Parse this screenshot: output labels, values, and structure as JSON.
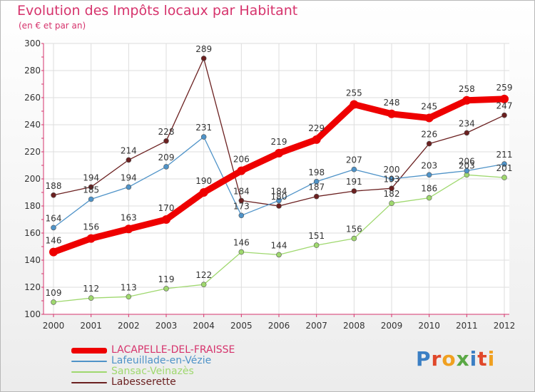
{
  "title": "Evolution des Impôts locaux par Habitant",
  "subtitle": "(en € et par an)",
  "logo_text": "Proxiti",
  "colors": {
    "title": "#d6336c",
    "grid": "#dddddd",
    "axis": "#d6336c"
  },
  "chart_data": {
    "type": "line",
    "x": [
      "2000",
      "2001",
      "2002",
      "2003",
      "2004",
      "2005",
      "2006",
      "2007",
      "2008",
      "2009",
      "2010",
      "2011",
      "2012"
    ],
    "ylim": [
      100,
      300
    ],
    "yticks": [
      100,
      120,
      140,
      160,
      180,
      200,
      220,
      240,
      260,
      280,
      300
    ],
    "grid": true,
    "legend_position": "bottom-left",
    "series": [
      {
        "name": "LACAPELLE-DEL-FRAISSE",
        "color": "#ee0000",
        "values": [
          146,
          156,
          163,
          170,
          190,
          206,
          219,
          229,
          255,
          248,
          245,
          258,
          259
        ]
      },
      {
        "name": "Lafeuillade-en-Vézie",
        "color": "#4f93c8",
        "values": [
          164,
          185,
          194,
          209,
          231,
          173,
          184,
          198,
          207,
          200,
          203,
          206,
          211
        ]
      },
      {
        "name": "Sansac-Veinazès",
        "color": "#9fd86e",
        "values": [
          109,
          112,
          113,
          119,
          122,
          146,
          144,
          151,
          156,
          182,
          186,
          203,
          201
        ]
      },
      {
        "name": "Labesserette",
        "color": "#6b2020",
        "values": [
          188,
          194,
          214,
          228,
          289,
          184,
          180,
          187,
          191,
          193,
          226,
          234,
          247
        ]
      }
    ]
  }
}
